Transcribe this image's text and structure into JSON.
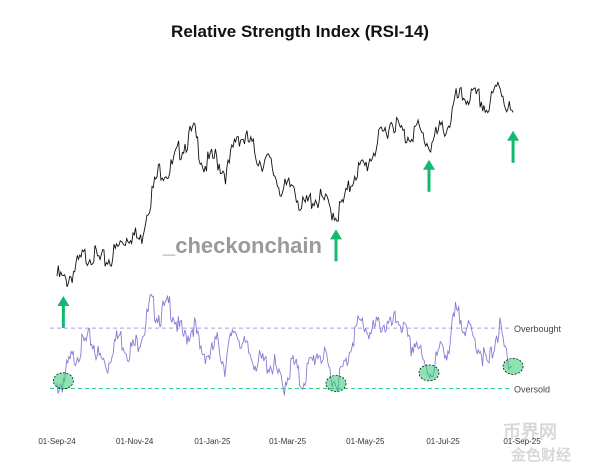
{
  "chart_data": [
    {
      "type": "line",
      "title": "Relative Strength Index (RSI-14)",
      "series": [
        {
          "points": [
            [
              "2024-09-01",
              57
            ],
            [
              "2024-09-06",
              55
            ],
            [
              "2024-09-12",
              58
            ],
            [
              "2024-09-20",
              63
            ],
            [
              "2024-09-27",
              65
            ],
            [
              "2024-10-04",
              62
            ],
            [
              "2024-10-12",
              63
            ],
            [
              "2024-10-20",
              68
            ],
            [
              "2024-10-28",
              72
            ],
            [
              "2024-11-05",
              69
            ],
            [
              "2024-11-10",
              80
            ],
            [
              "2024-11-20",
              94
            ],
            [
              "2024-11-28",
              93
            ],
            [
              "2024-12-05",
              100
            ],
            [
              "2024-12-17",
              107
            ],
            [
              "2024-12-25",
              95
            ],
            [
              "2025-01-03",
              98
            ],
            [
              "2025-01-12",
              92
            ],
            [
              "2025-01-20",
              106
            ],
            [
              "2025-01-30",
              103
            ],
            [
              "2025-02-07",
              97
            ],
            [
              "2025-02-15",
              96
            ],
            [
              "2025-02-25",
              86
            ],
            [
              "2025-03-05",
              89
            ],
            [
              "2025-03-11",
              80
            ],
            [
              "2025-03-20",
              84
            ],
            [
              "2025-03-28",
              83
            ],
            [
              "2025-04-08",
              78
            ],
            [
              "2025-04-15",
              84
            ],
            [
              "2025-04-22",
              93
            ],
            [
              "2025-05-01",
              95
            ],
            [
              "2025-05-10",
              103
            ],
            [
              "2025-05-22",
              111
            ],
            [
              "2025-06-01",
              105
            ],
            [
              "2025-06-10",
              108
            ],
            [
              "2025-06-20",
              102
            ],
            [
              "2025-06-30",
              108
            ],
            [
              "2025-07-05",
              109
            ],
            [
              "2025-07-11",
              118
            ],
            [
              "2025-07-20",
              119
            ],
            [
              "2025-07-30",
              118
            ],
            [
              "2025-08-05",
              114
            ],
            [
              "2025-08-14",
              124
            ],
            [
              "2025-08-20",
              116
            ],
            [
              "2025-08-25",
              112
            ]
          ],
          "color": "#111111"
        }
      ],
      "marked_points": [
        {
          "x": "2024-09-06",
          "color": "#2ecc71"
        },
        {
          "x": "2025-04-08",
          "color": "#2ecc71"
        },
        {
          "x": "2025-06-20",
          "color": "#2ecc71"
        },
        {
          "x": "2025-08-25",
          "color": "#2ecc71"
        }
      ],
      "arrow_color": "#14b86e"
    },
    {
      "type": "line",
      "series": [
        {
          "points": [
            [
              "2024-09-01",
              32
            ],
            [
              "2024-09-05",
              34
            ],
            [
              "2024-09-10",
              46
            ],
            [
              "2024-09-15",
              52
            ],
            [
              "2024-09-20",
              58
            ],
            [
              "2024-09-27",
              63
            ],
            [
              "2024-10-04",
              50
            ],
            [
              "2024-10-10",
              45
            ],
            [
              "2024-10-15",
              60
            ],
            [
              "2024-10-20",
              65
            ],
            [
              "2024-10-26",
              55
            ],
            [
              "2024-11-01",
              58
            ],
            [
              "2024-11-08",
              70
            ],
            [
              "2024-11-13",
              86
            ],
            [
              "2024-11-20",
              78
            ],
            [
              "2024-11-28",
              86
            ],
            [
              "2024-12-05",
              70
            ],
            [
              "2024-12-10",
              63
            ],
            [
              "2024-12-17",
              72
            ],
            [
              "2024-12-22",
              55
            ],
            [
              "2024-12-30",
              52
            ],
            [
              "2025-01-05",
              62
            ],
            [
              "2025-01-10",
              45
            ],
            [
              "2025-01-18",
              70
            ],
            [
              "2025-01-25",
              58
            ],
            [
              "2025-02-03",
              48
            ],
            [
              "2025-02-10",
              47
            ],
            [
              "2025-02-18",
              45
            ],
            [
              "2025-02-25",
              30
            ],
            [
              "2025-03-01",
              40
            ],
            [
              "2025-03-05",
              48
            ],
            [
              "2025-03-11",
              33
            ],
            [
              "2025-03-18",
              45
            ],
            [
              "2025-03-25",
              55
            ],
            [
              "2025-04-01",
              45
            ],
            [
              "2025-04-07",
              33
            ],
            [
              "2025-04-15",
              46
            ],
            [
              "2025-04-22",
              68
            ],
            [
              "2025-04-28",
              74
            ],
            [
              "2025-05-05",
              66
            ],
            [
              "2025-05-12",
              74
            ],
            [
              "2025-05-20",
              70
            ],
            [
              "2025-05-27",
              77
            ],
            [
              "2025-06-05",
              57
            ],
            [
              "2025-06-10",
              62
            ],
            [
              "2025-06-15",
              45
            ],
            [
              "2025-06-21",
              41
            ],
            [
              "2025-06-30",
              58
            ],
            [
              "2025-07-05",
              55
            ],
            [
              "2025-07-10",
              80
            ],
            [
              "2025-07-15",
              76
            ],
            [
              "2025-07-22",
              66
            ],
            [
              "2025-07-30",
              56
            ],
            [
              "2025-08-05",
              43
            ],
            [
              "2025-08-10",
              62
            ],
            [
              "2025-08-14",
              70
            ],
            [
              "2025-08-18",
              55
            ],
            [
              "2025-08-24",
              46
            ]
          ],
          "color": "#8a7bd8"
        }
      ],
      "ylim": [
        25,
        90
      ],
      "levels": [
        {
          "label": "Overbought",
          "y": 70,
          "color": "#b49be8"
        },
        {
          "label": "Oversold",
          "y": 30,
          "color": "#2fd08a"
        }
      ],
      "marked_points": [
        {
          "x": "2024-09-06",
          "color": "#2ecc71"
        },
        {
          "x": "2025-04-08",
          "color": "#2ecc71"
        },
        {
          "x": "2025-06-20",
          "color": "#2ecc71"
        },
        {
          "x": "2025-08-25",
          "color": "#2ecc71"
        }
      ],
      "xticks": [
        "01-Sep-24",
        "01-Nov-24",
        "01-Jan-25",
        "01-Mar-25",
        "01-May-25",
        "01-Jul-25",
        "01-Sep-25"
      ],
      "xtick_dates": [
        "2024-09-01",
        "2024-11-01",
        "2025-01-01",
        "2025-03-01",
        "2025-05-01",
        "2025-07-01",
        "2025-09-01"
      ]
    }
  ],
  "watermark": "_checkonchain",
  "corner_watermark": {
    "line1": "币界网",
    "line2": "金色财经"
  }
}
